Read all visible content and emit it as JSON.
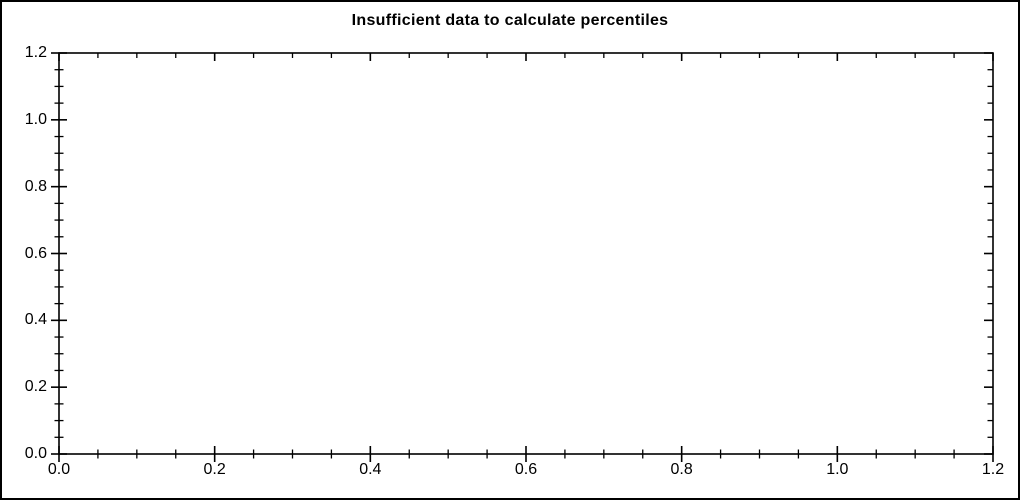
{
  "figure": {
    "background": "#ffffff",
    "border_color": "#000000"
  },
  "chart_data": {
    "type": "scatter",
    "title": "Insufficient data to calculate percentiles",
    "series": [],
    "xlabel": "",
    "ylabel": "",
    "xlim": [
      0.0,
      1.2
    ],
    "ylim": [
      0.0,
      1.2
    ],
    "x_major_ticks": [
      0.0,
      0.2,
      0.4,
      0.6,
      0.8,
      1.0,
      1.2
    ],
    "y_major_ticks": [
      0.0,
      0.2,
      0.4,
      0.6,
      0.8,
      1.0,
      1.2
    ],
    "x_tick_labels": [
      "0.0",
      "0.2",
      "0.4",
      "0.6",
      "0.8",
      "1.0",
      "1.2"
    ],
    "y_tick_labels": [
      "0.0",
      "0.2",
      "0.4",
      "0.6",
      "0.8",
      "1.0",
      "1.2"
    ],
    "minor_tick_step": 0.05,
    "grid": false,
    "legend": false,
    "axis_color": "#000000",
    "title_color": "#000000"
  }
}
